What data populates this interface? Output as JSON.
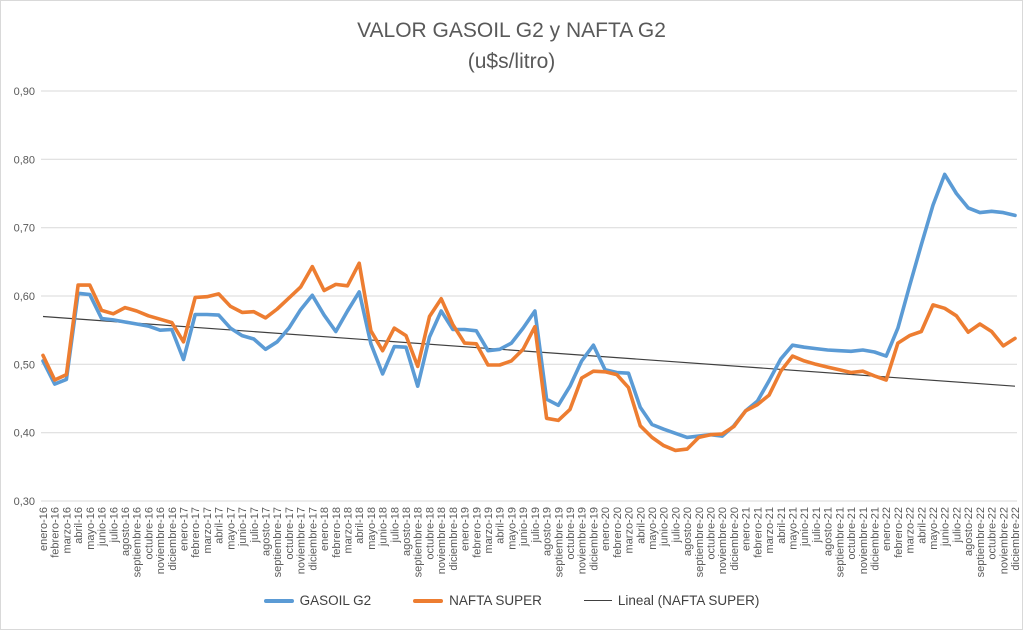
{
  "chart": {
    "title_line1": "VALOR GASOIL G2 y NAFTA G2",
    "title_line2": "(u$s/litro)"
  },
  "legend": {
    "gasoil": "GASOIL G2",
    "nafta": "NAFTA SUPER",
    "lineal": "Lineal (NAFTA SUPER)"
  },
  "chart_data": {
    "type": "line",
    "title": "VALOR GASOIL G2 y NAFTA G2 (u$s/litro)",
    "grid": true,
    "legend_position": "bottom",
    "y_axis": {
      "min": 0.3,
      "max": 0.9,
      "tick_step": 0.1,
      "tick_labels": [
        "0,90",
        "0,80",
        "0,70",
        "0,60",
        "0,50",
        "0,40",
        "0,30"
      ]
    },
    "x_categories": [
      "enero-16",
      "febrero-16",
      "marzo-16",
      "abril-16",
      "mayo-16",
      "junio-16",
      "julio-16",
      "agosto-16",
      "septiembre-16",
      "octubre-16",
      "noviembre-16",
      "diciembre-16",
      "enero-17",
      "febrero-17",
      "marzo-17",
      "abril-17",
      "mayo-17",
      "junio-17",
      "julio-17",
      "agosto-17",
      "septiembre-17",
      "octubre-17",
      "noviembre-17",
      "diciembre-17",
      "enero-18",
      "febrero-18",
      "marzo-18",
      "abril-18",
      "mayo-18",
      "junio-18",
      "julio-18",
      "agosto-18",
      "septiembre-18",
      "octubre-18",
      "noviembre-18",
      "diciembre-18",
      "enero-19",
      "febrero-19",
      "marzo-19",
      "abril-19",
      "mayo-19",
      "junio-19",
      "julio-19",
      "agosto-19",
      "septiembre-19",
      "octubre-19",
      "noviembre-19",
      "diciembre-19",
      "enero-20",
      "febrero-20",
      "marzo-20",
      "abril-20",
      "mayo-20",
      "junio-20",
      "julio-20",
      "agosto-20",
      "septiembre-20",
      "octubre-20",
      "noviembre-20",
      "diciembre-20",
      "enero-21",
      "febrero-21",
      "marzo-21",
      "abril-21",
      "mayo-21",
      "junio-21",
      "julio-21",
      "agosto-21",
      "septiembre-21",
      "octubre-21",
      "noviembre-21",
      "diciembre-21",
      "enero-22",
      "febrero-22",
      "marzo-22",
      "abril-22",
      "mayo-22",
      "junio-22",
      "julio-22",
      "agosto-22",
      "septiembre-22",
      "octubre-22",
      "noviembre-22",
      "diciembre-22"
    ],
    "series": [
      {
        "name": "GASOIL G2",
        "color": "#5B9BD5",
        "values": [
          0.505,
          0.471,
          0.478,
          0.604,
          0.602,
          0.567,
          0.565,
          0.562,
          0.559,
          0.556,
          0.55,
          0.551,
          0.507,
          0.573,
          0.573,
          0.572,
          0.553,
          0.542,
          0.537,
          0.522,
          0.533,
          0.553,
          0.58,
          0.601,
          0.572,
          0.548,
          0.578,
          0.606,
          0.53,
          0.486,
          0.526,
          0.525,
          0.468,
          0.54,
          0.578,
          0.551,
          0.551,
          0.549,
          0.52,
          0.522,
          0.531,
          0.553,
          0.578,
          0.449,
          0.44,
          0.468,
          0.505,
          0.528,
          0.492,
          0.488,
          0.487,
          0.437,
          0.412,
          0.405,
          0.399,
          0.393,
          0.395,
          0.397,
          0.395,
          0.41,
          0.432,
          0.446,
          0.476,
          0.508,
          0.528,
          0.525,
          0.523,
          0.521,
          0.52,
          0.519,
          0.521,
          0.518,
          0.512,
          0.553,
          0.615,
          0.675,
          0.733,
          0.778,
          0.75,
          0.729,
          0.722,
          0.724,
          0.722,
          0.718
        ]
      },
      {
        "name": "NAFTA SUPER",
        "color": "#ED7D31",
        "values": [
          0.513,
          0.477,
          0.485,
          0.616,
          0.616,
          0.579,
          0.574,
          0.583,
          0.578,
          0.571,
          0.566,
          0.561,
          0.533,
          0.598,
          0.599,
          0.603,
          0.585,
          0.576,
          0.577,
          0.568,
          0.581,
          0.597,
          0.613,
          0.643,
          0.608,
          0.617,
          0.615,
          0.648,
          0.549,
          0.52,
          0.553,
          0.542,
          0.497,
          0.57,
          0.596,
          0.558,
          0.531,
          0.53,
          0.499,
          0.499,
          0.505,
          0.522,
          0.555,
          0.421,
          0.418,
          0.434,
          0.48,
          0.49,
          0.489,
          0.485,
          0.466,
          0.41,
          0.393,
          0.381,
          0.374,
          0.376,
          0.393,
          0.397,
          0.398,
          0.409,
          0.432,
          0.441,
          0.455,
          0.49,
          0.512,
          0.505,
          0.5,
          0.496,
          0.492,
          0.488,
          0.49,
          0.483,
          0.477,
          0.531,
          0.542,
          0.548,
          0.587,
          0.582,
          0.571,
          0.547,
          0.559,
          0.548,
          0.527,
          0.538
        ]
      }
    ],
    "trendline": {
      "name": "Lineal (NAFTA SUPER)",
      "color": "#404040",
      "start_value": 0.57,
      "end_value": 0.468
    }
  }
}
